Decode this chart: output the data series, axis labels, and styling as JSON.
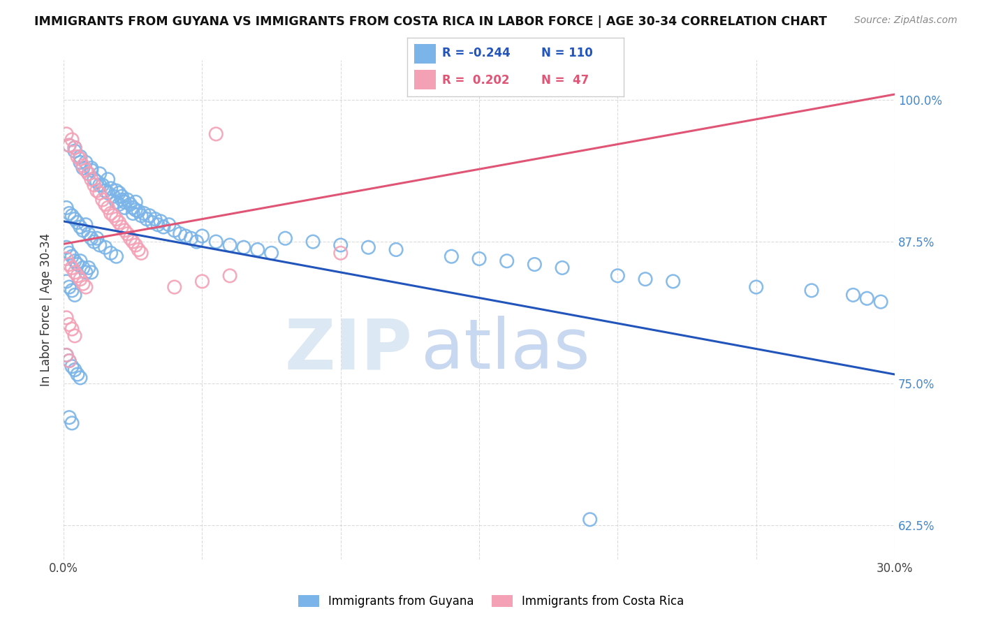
{
  "title": "IMMIGRANTS FROM GUYANA VS IMMIGRANTS FROM COSTA RICA IN LABOR FORCE | AGE 30-34 CORRELATION CHART",
  "source": "Source: ZipAtlas.com",
  "ylabel_label": "In Labor Force | Age 30-34",
  "xmin": 0.0,
  "xmax": 0.3,
  "ymin": 0.595,
  "ymax": 1.035,
  "yticks": [
    0.625,
    0.75,
    0.875,
    1.0
  ],
  "ytick_labels": [
    "62.5%",
    "75.0%",
    "87.5%",
    "100.0%"
  ],
  "xtick_vals": [
    0.0,
    0.05,
    0.1,
    0.15,
    0.2,
    0.25,
    0.3
  ],
  "legend_blue_r": "-0.244",
  "legend_blue_n": "110",
  "legend_pink_r": "0.202",
  "legend_pink_n": "47",
  "blue_marker_color": "#7ab4e8",
  "pink_marker_color": "#f4a0b5",
  "blue_line_color": "#2255bb",
  "pink_line_color": "#e05575",
  "watermark_zip": "ZIP",
  "watermark_atlas": "atlas",
  "blue_points": [
    [
      0.002,
      0.96
    ],
    [
      0.004,
      0.955
    ],
    [
      0.004,
      0.958
    ],
    [
      0.006,
      0.95
    ],
    [
      0.006,
      0.945
    ],
    [
      0.007,
      0.94
    ],
    [
      0.008,
      0.945
    ],
    [
      0.009,
      0.935
    ],
    [
      0.01,
      0.94
    ],
    [
      0.01,
      0.938
    ],
    [
      0.011,
      0.93
    ],
    [
      0.012,
      0.928
    ],
    [
      0.013,
      0.935
    ],
    [
      0.013,
      0.925
    ],
    [
      0.014,
      0.925
    ],
    [
      0.015,
      0.92
    ],
    [
      0.016,
      0.93
    ],
    [
      0.016,
      0.918
    ],
    [
      0.017,
      0.922
    ],
    [
      0.018,
      0.915
    ],
    [
      0.019,
      0.92
    ],
    [
      0.019,
      0.91
    ],
    [
      0.02,
      0.918
    ],
    [
      0.02,
      0.908
    ],
    [
      0.021,
      0.915
    ],
    [
      0.021,
      0.912
    ],
    [
      0.022,
      0.91
    ],
    [
      0.022,
      0.905
    ],
    [
      0.023,
      0.912
    ],
    [
      0.024,
      0.908
    ],
    [
      0.025,
      0.905
    ],
    [
      0.025,
      0.9
    ],
    [
      0.026,
      0.91
    ],
    [
      0.026,
      0.903
    ],
    [
      0.027,
      0.902
    ],
    [
      0.028,
      0.898
    ],
    [
      0.029,
      0.9
    ],
    [
      0.03,
      0.895
    ],
    [
      0.031,
      0.898
    ],
    [
      0.032,
      0.892
    ],
    [
      0.033,
      0.895
    ],
    [
      0.034,
      0.89
    ],
    [
      0.035,
      0.893
    ],
    [
      0.036,
      0.888
    ],
    [
      0.038,
      0.89
    ],
    [
      0.04,
      0.885
    ],
    [
      0.042,
      0.882
    ],
    [
      0.044,
      0.88
    ],
    [
      0.046,
      0.878
    ],
    [
      0.048,
      0.875
    ],
    [
      0.05,
      0.88
    ],
    [
      0.055,
      0.875
    ],
    [
      0.06,
      0.872
    ],
    [
      0.065,
      0.87
    ],
    [
      0.07,
      0.868
    ],
    [
      0.075,
      0.865
    ],
    [
      0.001,
      0.905
    ],
    [
      0.002,
      0.9
    ],
    [
      0.003,
      0.898
    ],
    [
      0.004,
      0.895
    ],
    [
      0.005,
      0.892
    ],
    [
      0.006,
      0.888
    ],
    [
      0.007,
      0.885
    ],
    [
      0.008,
      0.89
    ],
    [
      0.009,
      0.882
    ],
    [
      0.01,
      0.878
    ],
    [
      0.011,
      0.875
    ],
    [
      0.012,
      0.878
    ],
    [
      0.013,
      0.872
    ],
    [
      0.015,
      0.87
    ],
    [
      0.017,
      0.865
    ],
    [
      0.019,
      0.862
    ],
    [
      0.001,
      0.87
    ],
    [
      0.002,
      0.865
    ],
    [
      0.003,
      0.862
    ],
    [
      0.004,
      0.858
    ],
    [
      0.005,
      0.855
    ],
    [
      0.006,
      0.858
    ],
    [
      0.007,
      0.852
    ],
    [
      0.008,
      0.848
    ],
    [
      0.009,
      0.852
    ],
    [
      0.01,
      0.848
    ],
    [
      0.001,
      0.84
    ],
    [
      0.002,
      0.835
    ],
    [
      0.003,
      0.832
    ],
    [
      0.004,
      0.828
    ],
    [
      0.001,
      0.775
    ],
    [
      0.002,
      0.77
    ],
    [
      0.003,
      0.765
    ],
    [
      0.004,
      0.762
    ],
    [
      0.005,
      0.758
    ],
    [
      0.006,
      0.755
    ],
    [
      0.002,
      0.72
    ],
    [
      0.003,
      0.715
    ],
    [
      0.08,
      0.878
    ],
    [
      0.09,
      0.875
    ],
    [
      0.1,
      0.872
    ],
    [
      0.11,
      0.87
    ],
    [
      0.12,
      0.868
    ],
    [
      0.14,
      0.862
    ],
    [
      0.15,
      0.86
    ],
    [
      0.16,
      0.858
    ],
    [
      0.17,
      0.855
    ],
    [
      0.18,
      0.852
    ],
    [
      0.2,
      0.845
    ],
    [
      0.21,
      0.842
    ],
    [
      0.22,
      0.84
    ],
    [
      0.25,
      0.835
    ],
    [
      0.27,
      0.832
    ],
    [
      0.285,
      0.828
    ],
    [
      0.29,
      0.825
    ],
    [
      0.295,
      0.822
    ],
    [
      0.19,
      0.63
    ]
  ],
  "pink_points": [
    [
      0.001,
      0.97
    ],
    [
      0.002,
      0.96
    ],
    [
      0.003,
      0.965
    ],
    [
      0.004,
      0.958
    ],
    [
      0.005,
      0.95
    ],
    [
      0.006,
      0.948
    ],
    [
      0.007,
      0.942
    ],
    [
      0.008,
      0.938
    ],
    [
      0.009,
      0.935
    ],
    [
      0.01,
      0.93
    ],
    [
      0.011,
      0.925
    ],
    [
      0.012,
      0.92
    ],
    [
      0.013,
      0.918
    ],
    [
      0.014,
      0.912
    ],
    [
      0.015,
      0.908
    ],
    [
      0.016,
      0.905
    ],
    [
      0.017,
      0.9
    ],
    [
      0.018,
      0.898
    ],
    [
      0.019,
      0.895
    ],
    [
      0.02,
      0.892
    ],
    [
      0.021,
      0.888
    ],
    [
      0.022,
      0.885
    ],
    [
      0.023,
      0.882
    ],
    [
      0.024,
      0.878
    ],
    [
      0.025,
      0.875
    ],
    [
      0.026,
      0.872
    ],
    [
      0.027,
      0.868
    ],
    [
      0.028,
      0.865
    ],
    [
      0.001,
      0.86
    ],
    [
      0.002,
      0.855
    ],
    [
      0.003,
      0.852
    ],
    [
      0.004,
      0.848
    ],
    [
      0.005,
      0.845
    ],
    [
      0.006,
      0.842
    ],
    [
      0.007,
      0.838
    ],
    [
      0.008,
      0.835
    ],
    [
      0.001,
      0.808
    ],
    [
      0.002,
      0.802
    ],
    [
      0.003,
      0.798
    ],
    [
      0.004,
      0.792
    ],
    [
      0.001,
      0.775
    ],
    [
      0.002,
      0.77
    ],
    [
      0.04,
      0.835
    ],
    [
      0.05,
      0.84
    ],
    [
      0.06,
      0.845
    ],
    [
      0.1,
      0.865
    ],
    [
      0.055,
      0.97
    ]
  ],
  "blue_trend": [
    0.0,
    0.3,
    0.893,
    0.758
  ],
  "pink_trend": [
    0.0,
    0.3,
    0.873,
    1.005
  ]
}
